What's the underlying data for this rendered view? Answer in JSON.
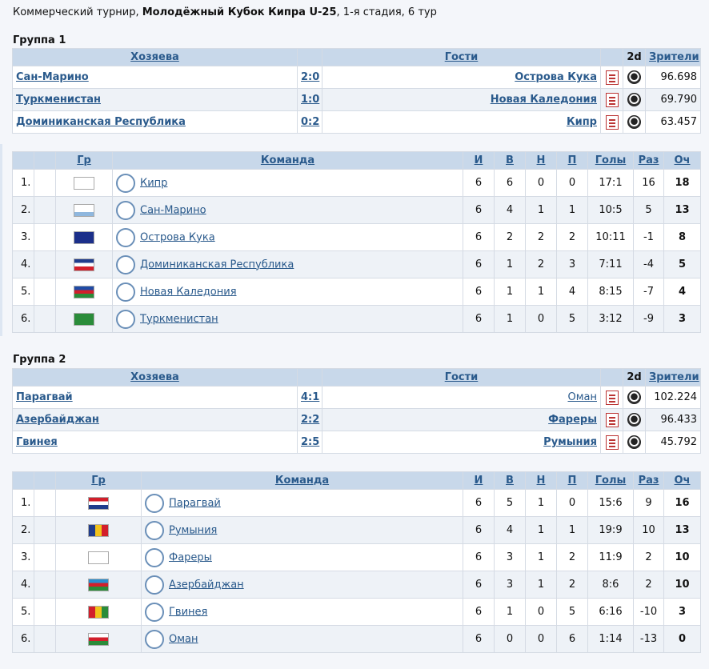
{
  "header": {
    "prefix": "Коммерческий турнир, ",
    "tournament": "Молодёжный Кубок Кипра U-25",
    "suffix": ", 1-я стадия, 6 тур"
  },
  "columns_matches": {
    "home": "Хозяева",
    "away": "Гости",
    "twod": "2d",
    "attendance": "Зрители"
  },
  "columns_standings": {
    "gr": "Гр",
    "team": "Команда",
    "played": "И",
    "won": "В",
    "draw": "Н",
    "lost": "П",
    "goals": "Голы",
    "diff": "Раз",
    "points": "Оч"
  },
  "groups": [
    {
      "title": "Группа 1",
      "matches": [
        {
          "home": "Сан-Марино",
          "score": "2:0",
          "away": "Острова Кука",
          "attendance": "96.698",
          "home_bold": true,
          "away_bold": true
        },
        {
          "home": "Туркменистан",
          "score": "1:0",
          "away": "Новая Каледония",
          "attendance": "69.790",
          "home_bold": true,
          "away_bold": true
        },
        {
          "home": "Доминиканская Республика",
          "score": "0:2",
          "away": "Кипр",
          "attendance": "63.457",
          "home_bold": true,
          "away_bold": true
        }
      ],
      "standings": [
        {
          "pos": "1.",
          "team": "Кипр",
          "played": "6",
          "won": "6",
          "draw": "0",
          "lost": "0",
          "goals": "17:1",
          "diff": "16",
          "points": "18",
          "flag": [
            "#ffffff",
            "#ffffff",
            "#ffffff"
          ],
          "flag_accent": "#d9a33a"
        },
        {
          "pos": "2.",
          "team": "Сан-Марино",
          "played": "6",
          "won": "4",
          "draw": "1",
          "lost": "1",
          "goals": "10:5",
          "diff": "5",
          "points": "13",
          "flag": [
            "#ffffff",
            "#ffffff",
            "#8fb7de"
          ],
          "flag_accent": "#8fb7de"
        },
        {
          "pos": "3.",
          "team": "Острова Кука",
          "played": "6",
          "won": "2",
          "draw": "2",
          "lost": "2",
          "goals": "10:11",
          "diff": "-1",
          "points": "8",
          "flag": [
            "#1b2f8a",
            "#1b2f8a",
            "#1b2f8a"
          ],
          "flag_accent": "#ffffff"
        },
        {
          "pos": "4.",
          "team": "Доминиканская Республика",
          "played": "6",
          "won": "1",
          "draw": "2",
          "lost": "3",
          "goals": "7:11",
          "diff": "-4",
          "points": "5",
          "flag": [
            "#1f3c8c",
            "#ffffff",
            "#d21f2b"
          ],
          "flag_accent": "#ffffff"
        },
        {
          "pos": "5.",
          "team": "Новая Каледония",
          "played": "6",
          "won": "1",
          "draw": "1",
          "lost": "4",
          "goals": "8:15",
          "diff": "-7",
          "points": "4",
          "flag": [
            "#1f4ba5",
            "#d21f2b",
            "#2a8c3a"
          ],
          "flag_accent": "#f1c21b"
        },
        {
          "pos": "6.",
          "team": "Туркменистан",
          "played": "6",
          "won": "1",
          "draw": "0",
          "lost": "5",
          "goals": "3:12",
          "diff": "-9",
          "points": "3",
          "flag": [
            "#2a8c3a",
            "#2a8c3a",
            "#2a8c3a"
          ],
          "flag_accent": "#b22222"
        }
      ]
    },
    {
      "title": "Группа 2",
      "matches": [
        {
          "home": "Парагвай",
          "score": "4:1",
          "away": "Оман",
          "attendance": "102.224",
          "home_bold": true,
          "away_bold": false
        },
        {
          "home": "Азербайджан",
          "score": "2:2",
          "away": "Фареры",
          "attendance": "96.433",
          "home_bold": true,
          "away_bold": true
        },
        {
          "home": "Гвинея",
          "score": "2:5",
          "away": "Румыния",
          "attendance": "45.792",
          "home_bold": true,
          "away_bold": true
        }
      ],
      "standings": [
        {
          "pos": "1.",
          "team": "Парагвай",
          "played": "6",
          "won": "5",
          "draw": "1",
          "lost": "0",
          "goals": "15:6",
          "diff": "9",
          "points": "16",
          "flag": [
            "#d21f2b",
            "#ffffff",
            "#1f3c8c"
          ],
          "flag_accent": "#ffffff"
        },
        {
          "pos": "2.",
          "team": "Румыния",
          "played": "6",
          "won": "4",
          "draw": "1",
          "lost": "1",
          "goals": "19:9",
          "diff": "10",
          "points": "13",
          "flag": [
            "#1f3c8c",
            "#f1c21b",
            "#d21f2b"
          ],
          "flag_accent": "#f1c21b",
          "vertical": true
        },
        {
          "pos": "3.",
          "team": "Фареры",
          "played": "6",
          "won": "3",
          "draw": "1",
          "lost": "2",
          "goals": "11:9",
          "diff": "2",
          "points": "10",
          "flag": [
            "#ffffff",
            "#ffffff",
            "#ffffff"
          ],
          "flag_accent": "#d21f2b"
        },
        {
          "pos": "4.",
          "team": "Азербайджан",
          "played": "6",
          "won": "3",
          "draw": "1",
          "lost": "2",
          "goals": "8:6",
          "diff": "2",
          "points": "10",
          "flag": [
            "#2a8fd0",
            "#d21f2b",
            "#2a8c3a"
          ],
          "flag_accent": "#ffffff"
        },
        {
          "pos": "5.",
          "team": "Гвинея",
          "played": "6",
          "won": "1",
          "draw": "0",
          "lost": "5",
          "goals": "6:16",
          "diff": "-10",
          "points": "3",
          "flag": [
            "#d21f2b",
            "#f1c21b",
            "#2a8c3a"
          ],
          "flag_accent": "#f1c21b",
          "vertical": true
        },
        {
          "pos": "6.",
          "team": "Оман",
          "played": "6",
          "won": "0",
          "draw": "0",
          "lost": "6",
          "goals": "1:14",
          "diff": "-13",
          "points": "0",
          "flag": [
            "#ffffff",
            "#d21f2b",
            "#2a8c3a"
          ],
          "flag_accent": "#d21f2b"
        }
      ]
    }
  ]
}
